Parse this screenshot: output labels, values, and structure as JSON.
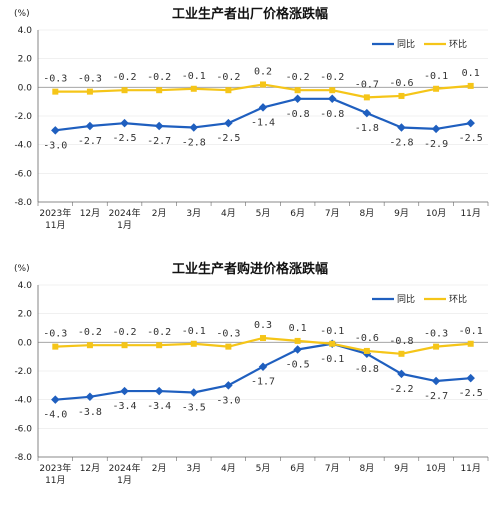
{
  "chart_data": [
    {
      "type": "line",
      "title": "工业生产者出厂价格涨跌幅",
      "unit": "(%)",
      "ylim": [
        -8.0,
        4.0
      ],
      "yticks": [
        "4.0",
        "2.0",
        "0.0",
        "-2.0",
        "-4.0",
        "-6.0",
        "-8.0"
      ],
      "categories": [
        [
          "2023年",
          "11月"
        ],
        [
          "12月"
        ],
        [
          "2024年",
          "1月"
        ],
        [
          "2月"
        ],
        [
          "3月"
        ],
        [
          "4月"
        ],
        [
          "5月"
        ],
        [
          "6月"
        ],
        [
          "7月"
        ],
        [
          "8月"
        ],
        [
          "9月"
        ],
        [
          "10月"
        ],
        [
          "11月"
        ]
      ],
      "legend_position": "top-right",
      "series": [
        {
          "name": "同比",
          "color": "#1F5FBF",
          "values": [
            -3.0,
            -2.7,
            -2.5,
            -2.7,
            -2.8,
            -2.5,
            -1.4,
            -0.8,
            -0.8,
            -1.8,
            -2.8,
            -2.9,
            -2.5
          ],
          "labels": [
            "-3.0",
            "-2.7",
            "-2.5",
            "-2.7",
            "-2.8",
            "-2.5",
            "-1.4",
            "-0.8",
            "-0.8",
            "-1.8",
            "-2.8",
            "-2.9",
            "-2.5"
          ]
        },
        {
          "name": "环比",
          "color": "#F5C518",
          "values": [
            -0.3,
            -0.3,
            -0.2,
            -0.2,
            -0.1,
            -0.2,
            0.2,
            -0.2,
            -0.2,
            -0.7,
            -0.6,
            -0.1,
            0.1
          ],
          "labels": [
            "-0.3",
            "-0.3",
            "-0.2",
            "-0.2",
            "-0.1",
            "-0.2",
            "0.2",
            "-0.2",
            "-0.2",
            "-0.7",
            "-0.6",
            "-0.1",
            "0.1"
          ]
        }
      ]
    },
    {
      "type": "line",
      "title": "工业生产者购进价格涨跌幅",
      "unit": "(%)",
      "ylim": [
        -8.0,
        4.0
      ],
      "yticks": [
        "4.0",
        "2.0",
        "0.0",
        "-2.0",
        "-4.0",
        "-6.0",
        "-8.0"
      ],
      "categories": [
        [
          "2023年",
          "11月"
        ],
        [
          "12月"
        ],
        [
          "2024年",
          "1月"
        ],
        [
          "2月"
        ],
        [
          "3月"
        ],
        [
          "4月"
        ],
        [
          "5月"
        ],
        [
          "6月"
        ],
        [
          "7月"
        ],
        [
          "8月"
        ],
        [
          "9月"
        ],
        [
          "10月"
        ],
        [
          "11月"
        ]
      ],
      "legend_position": "top-right",
      "series": [
        {
          "name": "同比",
          "color": "#1F5FBF",
          "values": [
            -4.0,
            -3.8,
            -3.4,
            -3.4,
            -3.5,
            -3.0,
            -1.7,
            -0.5,
            -0.1,
            -0.8,
            -2.2,
            -2.7,
            -2.5
          ],
          "labels": [
            "-4.0",
            "-3.8",
            "-3.4",
            "-3.4",
            "-3.5",
            "-3.0",
            "-1.7",
            "-0.5",
            "-0.1",
            "-0.8",
            "-2.2",
            "-2.7",
            "-2.5"
          ]
        },
        {
          "name": "环比",
          "color": "#F5C518",
          "values": [
            -0.3,
            -0.2,
            -0.2,
            -0.2,
            -0.1,
            -0.3,
            0.3,
            0.1,
            -0.1,
            -0.6,
            -0.8,
            -0.3,
            -0.1
          ],
          "labels": [
            "-0.3",
            "-0.2",
            "-0.2",
            "-0.2",
            "-0.1",
            "-0.3",
            "0.3",
            "0.1",
            "-0.1",
            "-0.6",
            "-0.8",
            "-0.3",
            "-0.1"
          ]
        }
      ]
    }
  ]
}
